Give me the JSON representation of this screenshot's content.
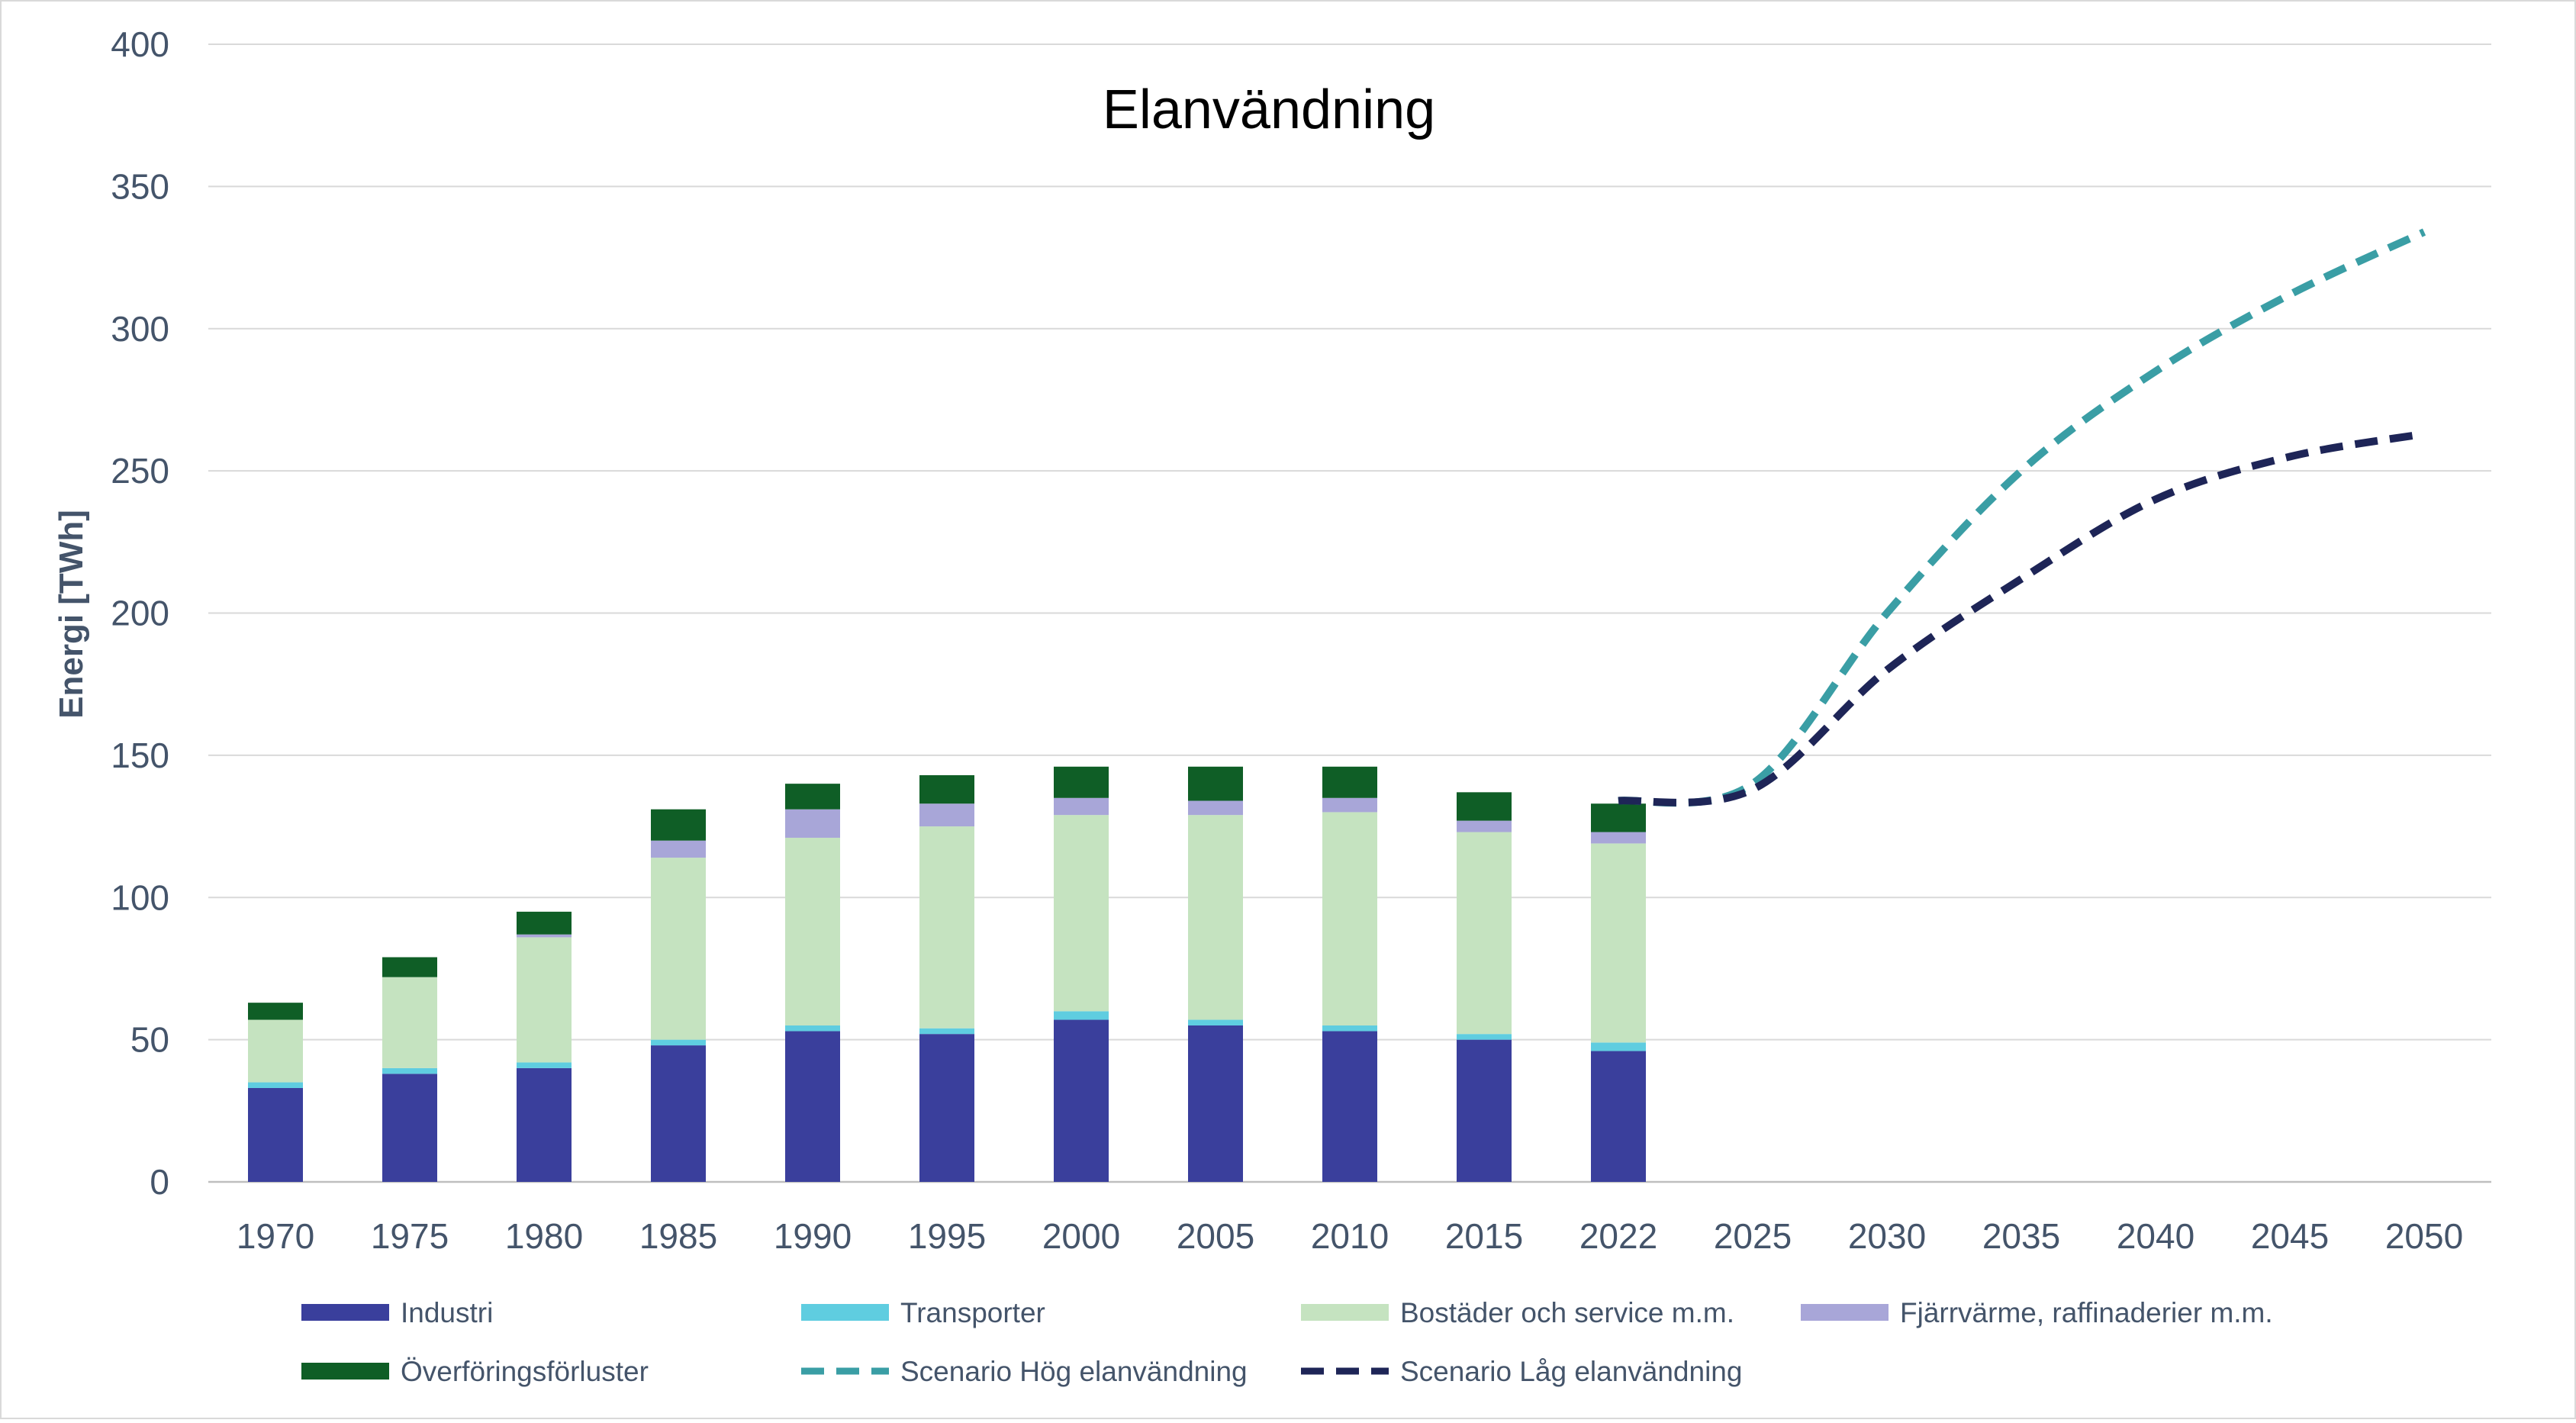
{
  "chart_data": {
    "type": "bar",
    "title": "Elanvändning",
    "xlabel": "",
    "ylabel": "Energi [TWh]",
    "ylim": [
      0,
      400
    ],
    "yticks": [
      0,
      50,
      100,
      150,
      200,
      250,
      300,
      350,
      400
    ],
    "grid": true,
    "categories": [
      "1970",
      "1975",
      "1980",
      "1985",
      "1990",
      "1995",
      "2000",
      "2005",
      "2010",
      "2015",
      "2022",
      "2025",
      "2030",
      "2035",
      "2040",
      "2045",
      "2050"
    ],
    "series": [
      {
        "name": "Industri",
        "kind": "bar",
        "color": "#3a3f9c",
        "values": [
          33,
          38,
          40,
          48,
          53,
          52,
          57,
          55,
          53,
          50,
          46,
          null,
          null,
          null,
          null,
          null,
          null
        ]
      },
      {
        "name": "Transporter",
        "kind": "bar",
        "color": "#5fcde0",
        "values": [
          2,
          2,
          2,
          2,
          2,
          2,
          3,
          2,
          2,
          2,
          3,
          null,
          null,
          null,
          null,
          null,
          null
        ]
      },
      {
        "name": "Bostäder och service m.m.",
        "kind": "bar",
        "color": "#c5e3c0",
        "values": [
          22,
          32,
          44,
          64,
          66,
          71,
          69,
          72,
          75,
          71,
          70,
          null,
          null,
          null,
          null,
          null,
          null
        ]
      },
      {
        "name": "Fjärrvärme, raffinaderier m.m.",
        "kind": "bar",
        "color": "#a8a6d8",
        "values": [
          0,
          0,
          1,
          6,
          10,
          8,
          6,
          5,
          5,
          4,
          4,
          null,
          null,
          null,
          null,
          null,
          null
        ]
      },
      {
        "name": "Överföringsförluster",
        "kind": "bar",
        "color": "#0f5e26",
        "values": [
          6,
          7,
          8,
          11,
          9,
          10,
          11,
          12,
          11,
          10,
          10,
          null,
          null,
          null,
          null,
          null,
          null
        ]
      },
      {
        "name": "Scenario Hög elanvändning",
        "kind": "line",
        "color": "#3a9ea5",
        "values": [
          null,
          null,
          null,
          null,
          null,
          null,
          null,
          null,
          null,
          null,
          134,
          140,
          200,
          250,
          285,
          312,
          334
        ]
      },
      {
        "name": "Scenario Låg elanvändning",
        "kind": "line",
        "color": "#1e2557",
        "values": [
          null,
          null,
          null,
          null,
          null,
          null,
          null,
          null,
          null,
          null,
          134,
          138,
          180,
          212,
          240,
          255,
          263
        ]
      }
    ],
    "legend_position": "bottom"
  }
}
